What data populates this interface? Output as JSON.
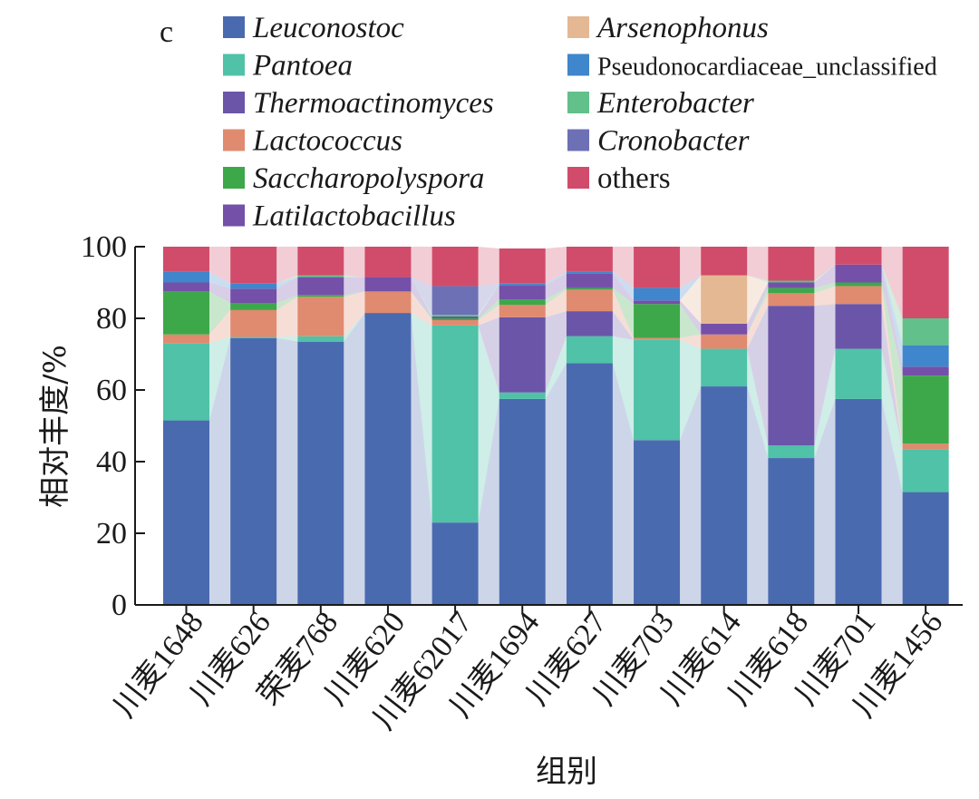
{
  "chart_data": {
    "type": "bar",
    "stacked": true,
    "panel_label": "c",
    "xlabel": "组别",
    "ylabel": "相对丰度/%",
    "ylim": [
      0,
      100
    ],
    "yticks": [
      "0",
      "20",
      "40",
      "60",
      "80",
      "100"
    ],
    "categories": [
      "川麦1648",
      "川麦626",
      "荣麦768",
      "川麦620",
      "川麦62017",
      "川麦1694",
      "川麦627",
      "川麦703",
      "川麦614",
      "川麦618",
      "川麦701",
      "川麦1456"
    ],
    "series": [
      {
        "name": "Leuconostoc",
        "italic": true,
        "color": "#4a6ab0",
        "values": [
          51.5,
          74.5,
          73.5,
          81.5,
          23,
          57.5,
          67.5,
          46,
          61,
          41,
          57.5,
          31.5
        ]
      },
      {
        "name": "Pantoea",
        "italic": true,
        "color": "#4fc2a8",
        "values": [
          21.5,
          0.3,
          1.5,
          0,
          55,
          1.8,
          7.5,
          28,
          10.5,
          3.5,
          14,
          12
        ]
      },
      {
        "name": "Thermoactinomyces",
        "italic": true,
        "color": "#6a55a8",
        "values": [
          0,
          0,
          0,
          0,
          0,
          21,
          7,
          0,
          0,
          39,
          12.5,
          0
        ]
      },
      {
        "name": "Lactococcus",
        "italic": true,
        "color": "#e08a70",
        "values": [
          2.5,
          7.5,
          11,
          6,
          1.5,
          3.5,
          6,
          0.5,
          4,
          3.5,
          5,
          1.5
        ]
      },
      {
        "name": "Saccharopolyspora",
        "italic": true,
        "color": "#3da84a",
        "values": [
          12,
          2,
          0.5,
          0,
          0.5,
          1.5,
          0.5,
          9.5,
          0,
          1.5,
          1,
          19
        ]
      },
      {
        "name": "Latilactobacillus",
        "italic": true,
        "color": "#7450a8",
        "values": [
          2.5,
          4,
          5,
          4,
          0.5,
          4,
          4,
          1,
          3,
          1.5,
          5,
          2.5
        ]
      },
      {
        "name": "Arsenophonus",
        "italic": true,
        "color": "#e4b893",
        "values": [
          0,
          0,
          0,
          0,
          0,
          0,
          0,
          0,
          13.5,
          0,
          0,
          0
        ]
      },
      {
        "name": "Pseudonocardiaceae_unclassified",
        "italic": false,
        "color": "#3f86cc",
        "values": [
          3,
          1.5,
          0,
          0,
          0,
          0.5,
          0.5,
          3.5,
          0,
          0,
          0,
          6
        ]
      },
      {
        "name": "Enterobacter",
        "italic": true,
        "color": "#62c08a",
        "values": [
          0,
          0,
          0.5,
          0,
          0.5,
          0,
          0,
          0,
          0,
          0.5,
          0,
          7.5
        ]
      },
      {
        "name": "Cronobacter",
        "italic": true,
        "color": "#6d70b5",
        "values": [
          0,
          0,
          0,
          0,
          8,
          0,
          0,
          0,
          0,
          0,
          0,
          0
        ]
      },
      {
        "name": "others",
        "italic": false,
        "color": "#d14c6a",
        "values": [
          7,
          10.2,
          8,
          8.5,
          11,
          9.7,
          7,
          11.5,
          8,
          9.5,
          5,
          20
        ]
      }
    ]
  }
}
